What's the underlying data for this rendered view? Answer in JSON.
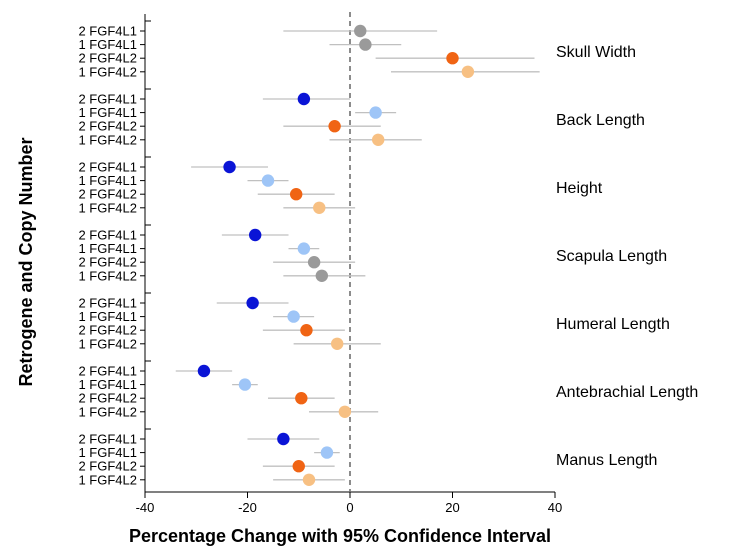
{
  "chart_data": {
    "type": "scatter",
    "xlabel": "Percentage Change with 95% Confidence Interval",
    "ylabel": "Retrogene and Copy Number",
    "xlim": [
      -40,
      40
    ],
    "x_ticks": [
      -40,
      -20,
      0,
      20,
      40
    ],
    "reference_line_x": 0,
    "colors": {
      "2 FGF4L1": "#0a14d6",
      "1 FGF4L1": "#9ec5f7",
      "2 FGF4L2": "#f06414",
      "1 FGF4L2": "#f7c083",
      "non_significant": "#9a9a9a",
      "ci_line": "#c0c0c0"
    },
    "groups": [
      {
        "name": "Skull Width",
        "rows": [
          {
            "label": "2 FGF4L1",
            "estimate": 2,
            "ci": [
              -13,
              17
            ],
            "significant": false
          },
          {
            "label": "1 FGF4L1",
            "estimate": 3,
            "ci": [
              -4,
              10
            ],
            "significant": false
          },
          {
            "label": "2 FGF4L2",
            "estimate": 20,
            "ci": [
              5,
              36
            ],
            "significant": true
          },
          {
            "label": "1 FGF4L2",
            "estimate": 23,
            "ci": [
              8,
              37
            ],
            "significant": true
          }
        ]
      },
      {
        "name": "Back Length",
        "rows": [
          {
            "label": "2 FGF4L1",
            "estimate": -9,
            "ci": [
              -17,
              0
            ],
            "significant": true
          },
          {
            "label": "1 FGF4L1",
            "estimate": 5,
            "ci": [
              1,
              9
            ],
            "significant": true
          },
          {
            "label": "2 FGF4L2",
            "estimate": -3,
            "ci": [
              -13,
              6
            ],
            "significant": true
          },
          {
            "label": "1 FGF4L2",
            "estimate": 5.5,
            "ci": [
              -4,
              14
            ],
            "significant": true
          }
        ]
      },
      {
        "name": "Height",
        "rows": [
          {
            "label": "2 FGF4L1",
            "estimate": -23.5,
            "ci": [
              -31,
              -16
            ],
            "significant": true
          },
          {
            "label": "1 FGF4L1",
            "estimate": -16,
            "ci": [
              -20,
              -12
            ],
            "significant": true
          },
          {
            "label": "2 FGF4L2",
            "estimate": -10.5,
            "ci": [
              -18,
              -3
            ],
            "significant": true
          },
          {
            "label": "1 FGF4L2",
            "estimate": -6,
            "ci": [
              -13,
              1
            ],
            "significant": true
          }
        ]
      },
      {
        "name": "Scapula Length",
        "rows": [
          {
            "label": "2 FGF4L1",
            "estimate": -18.5,
            "ci": [
              -25,
              -12
            ],
            "significant": true
          },
          {
            "label": "1 FGF4L1",
            "estimate": -9,
            "ci": [
              -12,
              -6
            ],
            "significant": true
          },
          {
            "label": "2 FGF4L2",
            "estimate": -7,
            "ci": [
              -15,
              1
            ],
            "significant": false
          },
          {
            "label": "1 FGF4L2",
            "estimate": -5.5,
            "ci": [
              -13,
              3
            ],
            "significant": false
          }
        ]
      },
      {
        "name": "Humeral Length",
        "rows": [
          {
            "label": "2 FGF4L1",
            "estimate": -19,
            "ci": [
              -26,
              -12
            ],
            "significant": true
          },
          {
            "label": "1 FGF4L1",
            "estimate": -11,
            "ci": [
              -15,
              -7
            ],
            "significant": true
          },
          {
            "label": "2 FGF4L2",
            "estimate": -8.5,
            "ci": [
              -17,
              -1
            ],
            "significant": true
          },
          {
            "label": "1 FGF4L2",
            "estimate": -2.5,
            "ci": [
              -11,
              6
            ],
            "significant": true
          }
        ]
      },
      {
        "name": "Antebrachial Length",
        "rows": [
          {
            "label": "2 FGF4L1",
            "estimate": -28.5,
            "ci": [
              -34,
              -23
            ],
            "significant": true
          },
          {
            "label": "1 FGF4L1",
            "estimate": -20.5,
            "ci": [
              -23,
              -18
            ],
            "significant": true
          },
          {
            "label": "2 FGF4L2",
            "estimate": -9.5,
            "ci": [
              -16,
              -3
            ],
            "significant": true
          },
          {
            "label": "1 FGF4L2",
            "estimate": -1,
            "ci": [
              -8,
              5.5
            ],
            "significant": true
          }
        ]
      },
      {
        "name": "Manus Length",
        "rows": [
          {
            "label": "2 FGF4L1",
            "estimate": -13,
            "ci": [
              -20,
              -6
            ],
            "significant": true
          },
          {
            "label": "1 FGF4L1",
            "estimate": -4.5,
            "ci": [
              -7,
              -2
            ],
            "significant": true
          },
          {
            "label": "2 FGF4L2",
            "estimate": -10,
            "ci": [
              -17,
              -3
            ],
            "significant": true
          },
          {
            "label": "1 FGF4L2",
            "estimate": -8,
            "ci": [
              -15,
              -1
            ],
            "significant": true
          }
        ]
      }
    ]
  }
}
